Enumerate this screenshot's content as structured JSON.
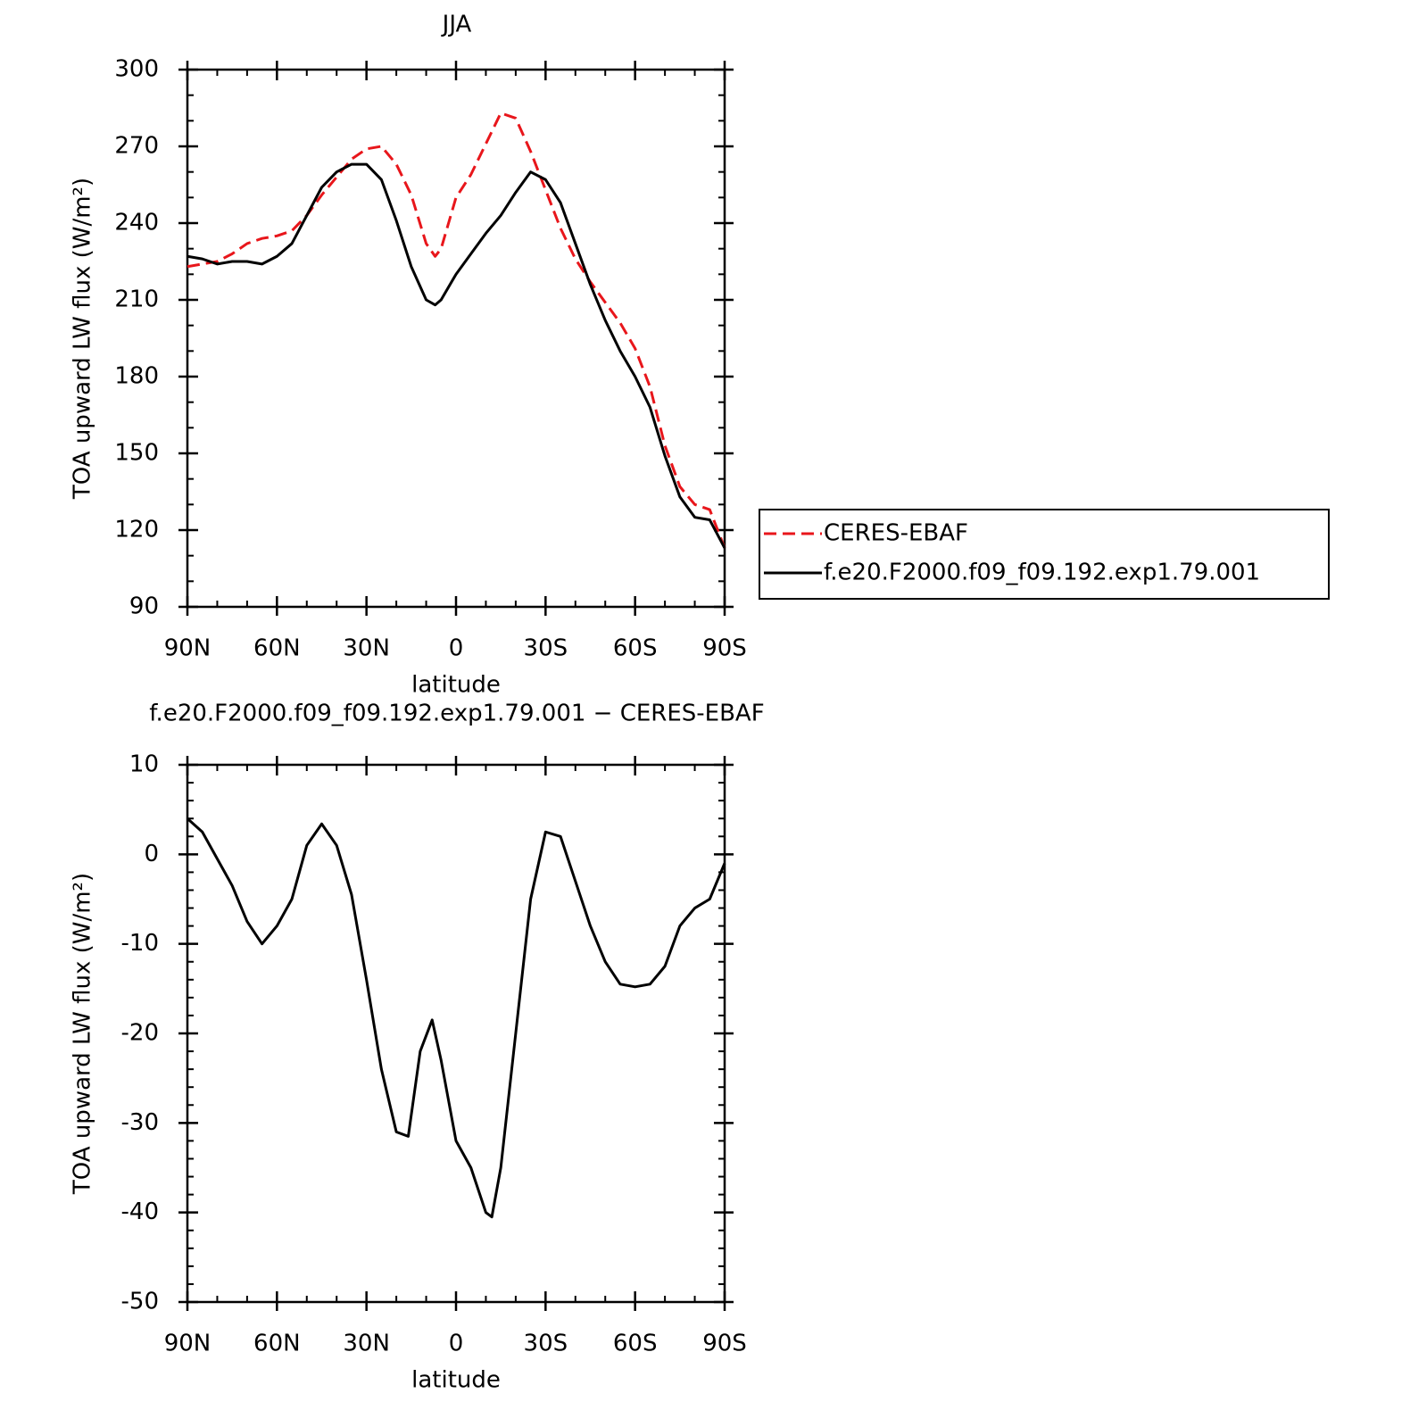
{
  "chart_data": [
    {
      "type": "line",
      "title": "JJA",
      "xlabel": "latitude",
      "ylabel": "TOA upward LW flux (W/m²)",
      "x": [
        90,
        85,
        80,
        75,
        70,
        65,
        60,
        55,
        50,
        45,
        40,
        35,
        30,
        25,
        20,
        15,
        10,
        7,
        5,
        0,
        -5,
        -10,
        -15,
        -20,
        -25,
        -30,
        -35,
        -40,
        -45,
        -50,
        -55,
        -60,
        -65,
        -70,
        -75,
        -80,
        -85,
        -90
      ],
      "series": [
        {
          "name": "CERES-EBAF",
          "color": "#e8161b",
          "dashed": true,
          "values": [
            223,
            224,
            225,
            228,
            232,
            234,
            235,
            237,
            243,
            251,
            258,
            265,
            269,
            270,
            263,
            251,
            232,
            227,
            230,
            250,
            259,
            271,
            283,
            281,
            268,
            253,
            238,
            226,
            217,
            209,
            201,
            191,
            176,
            153,
            137,
            130,
            128,
            113
          ]
        },
        {
          "name": "f.e20.F2000.f09_f09.192.exp1.79.001",
          "color": "#000000",
          "dashed": false,
          "values": [
            227,
            226,
            224,
            225,
            225,
            224,
            227,
            232,
            243,
            254,
            260,
            263,
            263,
            257,
            241,
            223,
            210,
            208,
            210,
            220,
            228,
            236,
            243,
            252,
            260,
            257,
            248,
            232,
            216,
            202,
            190,
            180,
            168,
            149,
            133,
            125,
            124,
            113
          ]
        }
      ],
      "xlim": [
        90,
        -90
      ],
      "xticks": [
        {
          "value": 90,
          "label": "90N"
        },
        {
          "value": 60,
          "label": "60N"
        },
        {
          "value": 30,
          "label": "30N"
        },
        0,
        {
          "value": -30,
          "label": "30S"
        },
        {
          "value": -60,
          "label": "60S"
        },
        {
          "value": -90,
          "label": "90S"
        }
      ],
      "ylim": [
        90,
        300
      ],
      "yticks": [
        90,
        120,
        150,
        180,
        210,
        240,
        270,
        300
      ],
      "legend": "right"
    },
    {
      "type": "line",
      "title": "f.e20.F2000.f09_f09.192.exp1.79.001 − CERES-EBAF",
      "xlabel": "latitude",
      "ylabel": "TOA upward LW flux (W/m²)",
      "x": [
        90,
        85,
        80,
        75,
        70,
        65,
        60,
        55,
        50,
        45,
        40,
        35,
        30,
        25,
        20,
        16,
        12,
        8,
        5,
        0,
        -5,
        -10,
        -12,
        -15,
        -20,
        -25,
        -30,
        -35,
        -40,
        -45,
        -50,
        -55,
        -60,
        -65,
        -70,
        -75,
        -80,
        -85,
        -90
      ],
      "values": [
        4,
        2.5,
        -0.5,
        -3.5,
        -7.5,
        -10,
        -8,
        -5,
        1,
        3.4,
        1,
        -4.5,
        -14,
        -24,
        -31,
        -31.5,
        -22,
        -18.5,
        -23,
        -32,
        -35,
        -40,
        -40.5,
        -35,
        -20,
        -5,
        2.5,
        2,
        -3,
        -8,
        -12,
        -14.5,
        -14.8,
        -14.5,
        -12.5,
        -8,
        -6,
        -5,
        -1
      ],
      "color": "#000000",
      "xlim": [
        90,
        -90
      ],
      "xticks": [
        {
          "value": 90,
          "label": "90N"
        },
        {
          "value": 60,
          "label": "60N"
        },
        {
          "value": 30,
          "label": "30N"
        },
        0,
        {
          "value": -30,
          "label": "30S"
        },
        {
          "value": -60,
          "label": "60S"
        },
        {
          "value": -90,
          "label": "90S"
        }
      ],
      "ylim": [
        -50,
        10
      ],
      "yticks": [
        -50,
        -40,
        -30,
        -20,
        -10,
        0,
        10
      ]
    }
  ]
}
